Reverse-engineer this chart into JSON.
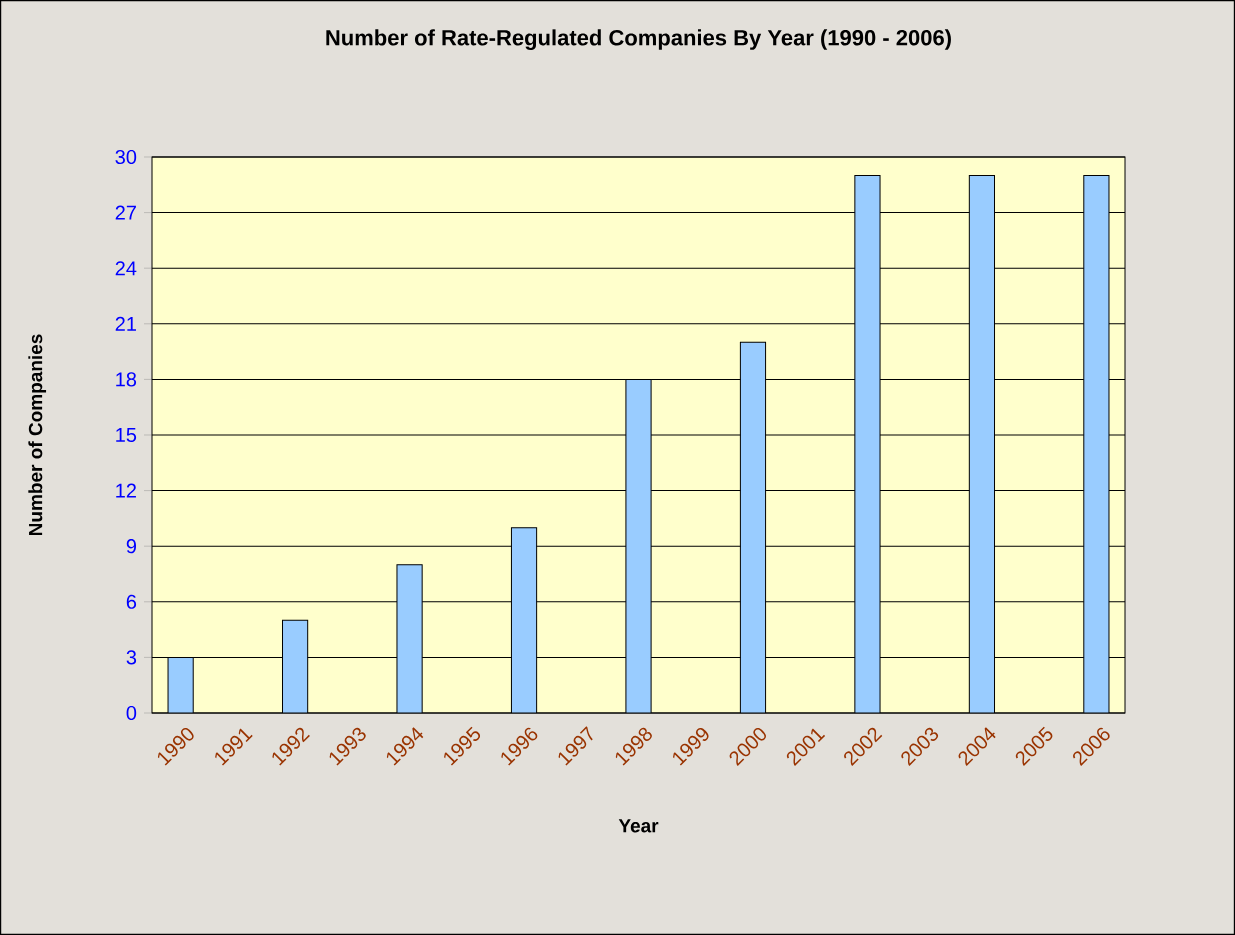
{
  "chart_data": {
    "type": "bar",
    "title": "Number of Rate-Regulated Companies By Year (1990 - 2006)",
    "xlabel": "Year",
    "ylabel": "Number of Companies",
    "categories": [
      "1990",
      "1991",
      "1992",
      "1993",
      "1994",
      "1995",
      "1996",
      "1997",
      "1998",
      "1999",
      "2000",
      "2001",
      "2002",
      "2003",
      "2004",
      "2005",
      "2006"
    ],
    "values": [
      3,
      null,
      5,
      null,
      8,
      null,
      10,
      null,
      18,
      null,
      20,
      null,
      29,
      null,
      29,
      null,
      29
    ],
    "color": "#99ccff",
    "ylim": [
      0,
      30
    ],
    "yticks": [
      0,
      3,
      6,
      9,
      12,
      15,
      18,
      21,
      24,
      27,
      30
    ],
    "grid": "y"
  }
}
